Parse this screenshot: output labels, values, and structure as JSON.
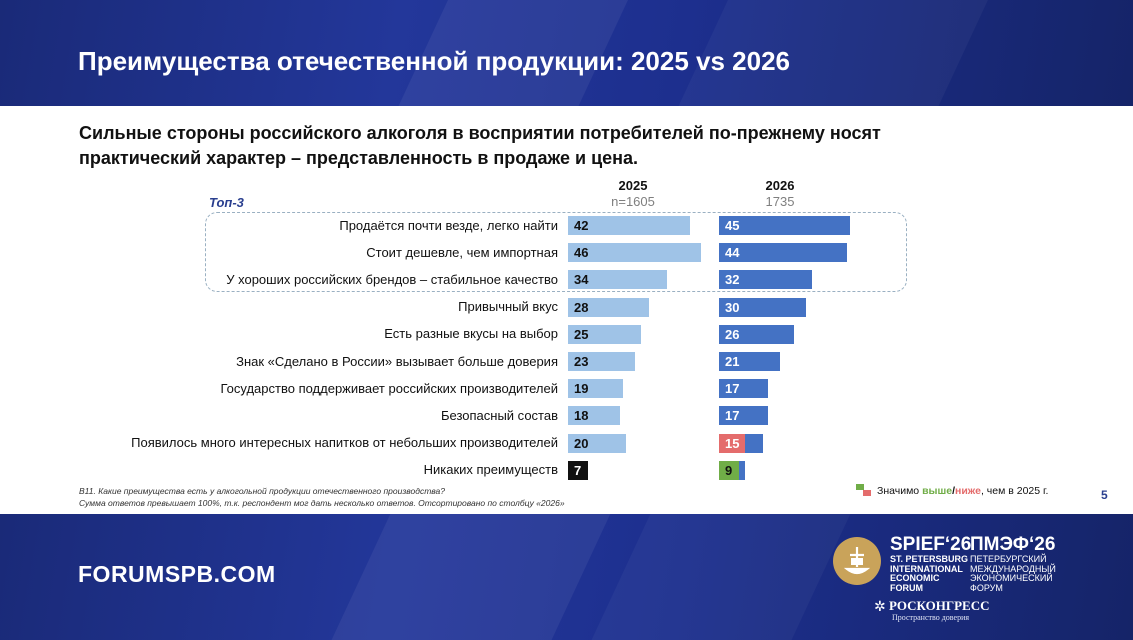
{
  "header": {
    "title": "Преимущества отечественной продукции: 2025 vs 2026"
  },
  "subtitle": "Сильные стороны российского алкоголя в восприятии потребителей по-прежнему носят практический характер – представленность в продаже и цена.",
  "chart_data": {
    "type": "bar",
    "orientation": "horizontal",
    "group_label": "Топ-3",
    "top_group_size": 3,
    "categories": [
      "Продаётся почти везде, легко найти",
      "Стоит дешевле, чем импортная",
      "У хороших российских брендов – стабильное качество",
      "Привычный вкус",
      "Есть разные вкусы на выбор",
      "Знак «Сделано в России» вызывает больше доверия",
      "Государство поддерживает российских производителей",
      "Безопасный состав",
      "Появилось много интересных напитков от небольших производителей",
      "Никаких преимуществ"
    ],
    "series": [
      {
        "name": "2025",
        "n": "n=1605",
        "color": "#9fc3e7",
        "values": [
          42,
          46,
          34,
          28,
          25,
          23,
          19,
          18,
          20,
          7
        ]
      },
      {
        "name": "2026",
        "n": "1735",
        "color": "#4472c4",
        "values": [
          45,
          44,
          32,
          30,
          26,
          21,
          17,
          17,
          15,
          9
        ]
      }
    ],
    "significance_2026": [
      null,
      null,
      null,
      null,
      null,
      null,
      null,
      null,
      "lower",
      "higher"
    ],
    "significance_colors": {
      "higher": "#70ad47",
      "lower": "#e46c6c"
    },
    "label_box_color": "#111111"
  },
  "footnote": {
    "line1": "В11. Какие преимущества есть у алкогольной продукции отечественного производства?",
    "line2": "Сумма ответов превышает 100%, т.к. респондент мог дать несколько ответов. Отсортировано по столбцу «2026»"
  },
  "legend": {
    "prefix": "Значимо ",
    "higher": "выше",
    "sep": "/",
    "lower": "ниже",
    "suffix": ", чем в 2025 г."
  },
  "page_number": "5",
  "footer": {
    "site": "FORUMSPB.COM",
    "spief_title": "SPIEF‘26",
    "spief_lines": [
      "ST. PETERSBURG",
      "INTERNATIONAL",
      "ECONOMIC",
      "FORUM"
    ],
    "pmef_title": "ПМЭФ‘26",
    "pmef_lines": [
      "ПЕТЕРБУРГСКИЙ",
      "МЕЖДУНАРОДНЫЙ",
      "ЭКОНОМИЧЕСКИЙ",
      "ФОРУМ"
    ],
    "roscongress": "РОСКОНГРЕСС",
    "roscongress_tagline": "Пространство доверия"
  }
}
